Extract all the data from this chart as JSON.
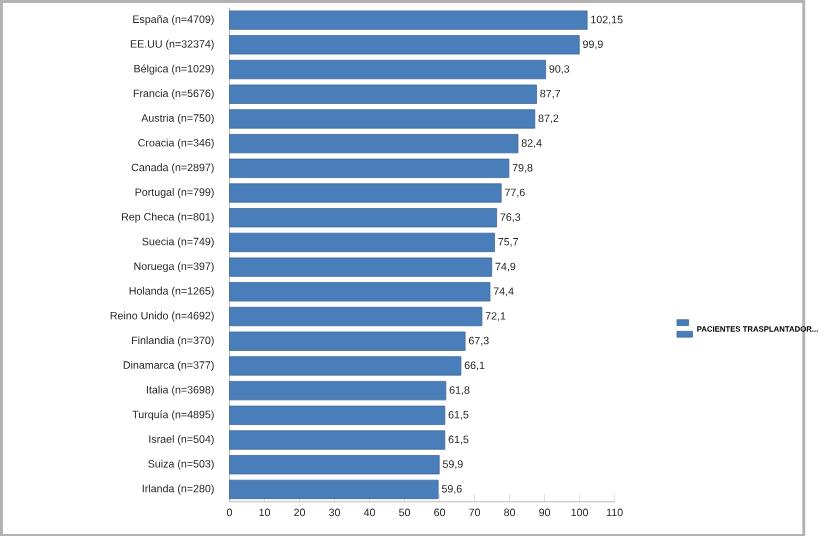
{
  "chart_data": {
    "type": "bar",
    "orientation": "horizontal",
    "categories": [
      "España (n=4709)",
      "EE.UU (n=32374)",
      "Bélgica (n=1029)",
      "Francia (n=5676)",
      "Austria (n=750)",
      "Croacia (n=346)",
      "Canada (n=2897)",
      "Portugal (n=799)",
      "Rep Checa (n=801)",
      "Suecia (n=749)",
      "Noruega (n=397)",
      "Holanda (n=1265)",
      "Reino Unido (n=4692)",
      "Finlandia (n=370)",
      "Dinamarca (n=377)",
      "Italia (n=3698)",
      "Turquía (n=4895)",
      "Israel (n=504)",
      "Suiza (n=503)",
      "Irlanda (n=280)"
    ],
    "series": [
      {
        "name": "PACIENTES TRASPLANTADOR...",
        "color": "#4a7ebb",
        "values": [
          102.15,
          99.9,
          90.3,
          87.7,
          87.2,
          82.4,
          79.8,
          77.6,
          76.3,
          75.7,
          74.9,
          74.4,
          72.1,
          67.3,
          66.1,
          61.8,
          61.5,
          61.5,
          59.9,
          59.6
        ],
        "value_labels": [
          "102,15",
          "99,9",
          "90,3",
          "87,7",
          "87,2",
          "82,4",
          "79,8",
          "77,6",
          "76,3",
          "75,7",
          "74,9",
          "74,4",
          "72,1",
          "67,3",
          "66,1",
          "61,8",
          "61,5",
          "61,5",
          "59,9",
          "59,6"
        ]
      }
    ],
    "xlim": [
      0,
      110
    ],
    "xticks": [
      0,
      10,
      20,
      30,
      40,
      50,
      60,
      70,
      80,
      90,
      100,
      110
    ],
    "legend": "right",
    "grid": false
  }
}
